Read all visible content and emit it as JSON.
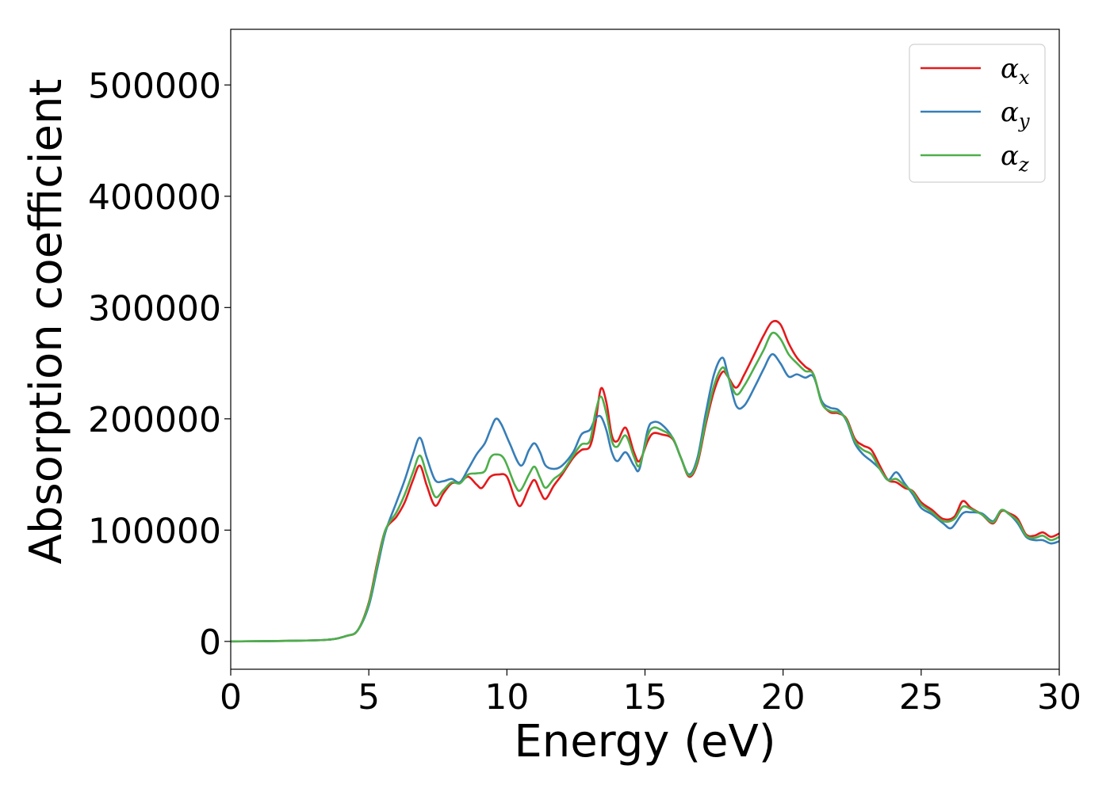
{
  "chart_data": {
    "type": "line",
    "title": "",
    "xlabel": "Energy (eV)",
    "ylabel": "Absorption coefficient",
    "xlim": [
      0,
      30
    ],
    "ylim": [
      -25000,
      550000
    ],
    "xticks": [
      0,
      5,
      10,
      15,
      20,
      25,
      30
    ],
    "yticks": [
      0,
      100000,
      200000,
      300000,
      400000,
      500000
    ],
    "grid": false,
    "legend_position": "top-right",
    "series": [
      {
        "name": "α_x",
        "symbol": "α",
        "subscript": "x",
        "color": "#e41a1c",
        "points": [
          [
            0,
            0
          ],
          [
            2,
            500
          ],
          [
            3.5,
            1500
          ],
          [
            4.2,
            5000
          ],
          [
            4.6,
            10000
          ],
          [
            5.0,
            35000
          ],
          [
            5.3,
            70000
          ],
          [
            5.6,
            100000
          ],
          [
            6.0,
            112000
          ],
          [
            6.3,
            125000
          ],
          [
            6.6,
            145000
          ],
          [
            6.85,
            158000
          ],
          [
            7.1,
            140000
          ],
          [
            7.4,
            122000
          ],
          [
            7.7,
            133000
          ],
          [
            8.0,
            142000
          ],
          [
            8.3,
            143000
          ],
          [
            8.6,
            148000
          ],
          [
            8.9,
            141000
          ],
          [
            9.1,
            138000
          ],
          [
            9.4,
            148000
          ],
          [
            9.7,
            150000
          ],
          [
            10.0,
            148000
          ],
          [
            10.3,
            128000
          ],
          [
            10.5,
            122000
          ],
          [
            10.8,
            138000
          ],
          [
            11.0,
            145000
          ],
          [
            11.2,
            135000
          ],
          [
            11.4,
            128000
          ],
          [
            11.7,
            140000
          ],
          [
            12.0,
            150000
          ],
          [
            12.4,
            165000
          ],
          [
            12.7,
            172000
          ],
          [
            13.0,
            175000
          ],
          [
            13.2,
            195000
          ],
          [
            13.4,
            227000
          ],
          [
            13.6,
            215000
          ],
          [
            13.8,
            185000
          ],
          [
            14.0,
            180000
          ],
          [
            14.3,
            192000
          ],
          [
            14.6,
            170000
          ],
          [
            14.8,
            162000
          ],
          [
            15.1,
            180000
          ],
          [
            15.3,
            187000
          ],
          [
            15.6,
            186000
          ],
          [
            16.0,
            182000
          ],
          [
            16.3,
            165000
          ],
          [
            16.6,
            148000
          ],
          [
            16.9,
            160000
          ],
          [
            17.2,
            195000
          ],
          [
            17.5,
            225000
          ],
          [
            17.8,
            242000
          ],
          [
            18.0,
            238000
          ],
          [
            18.3,
            228000
          ],
          [
            18.6,
            240000
          ],
          [
            19.0,
            260000
          ],
          [
            19.3,
            275000
          ],
          [
            19.6,
            287000
          ],
          [
            19.9,
            285000
          ],
          [
            20.2,
            268000
          ],
          [
            20.5,
            255000
          ],
          [
            20.8,
            247000
          ],
          [
            21.1,
            240000
          ],
          [
            21.4,
            215000
          ],
          [
            21.7,
            206000
          ],
          [
            22.0,
            205000
          ],
          [
            22.3,
            200000
          ],
          [
            22.6,
            182000
          ],
          [
            22.9,
            176000
          ],
          [
            23.2,
            172000
          ],
          [
            23.5,
            158000
          ],
          [
            23.8,
            145000
          ],
          [
            24.1,
            143000
          ],
          [
            24.4,
            138000
          ],
          [
            24.7,
            135000
          ],
          [
            25.0,
            125000
          ],
          [
            25.4,
            118000
          ],
          [
            25.8,
            110000
          ],
          [
            26.2,
            112000
          ],
          [
            26.5,
            126000
          ],
          [
            26.8,
            120000
          ],
          [
            27.2,
            114000
          ],
          [
            27.6,
            106000
          ],
          [
            27.9,
            117000
          ],
          [
            28.2,
            115000
          ],
          [
            28.5,
            110000
          ],
          [
            28.8,
            96000
          ],
          [
            29.1,
            95000
          ],
          [
            29.4,
            98000
          ],
          [
            29.7,
            94000
          ],
          [
            30.0,
            97000
          ]
        ]
      },
      {
        "name": "α_y",
        "symbol": "α",
        "subscript": "y",
        "color": "#377eb8",
        "points": [
          [
            0,
            0
          ],
          [
            2,
            500
          ],
          [
            3.5,
            1500
          ],
          [
            4.2,
            5000
          ],
          [
            4.6,
            10000
          ],
          [
            5.0,
            32000
          ],
          [
            5.3,
            65000
          ],
          [
            5.6,
            98000
          ],
          [
            6.0,
            125000
          ],
          [
            6.3,
            145000
          ],
          [
            6.6,
            168000
          ],
          [
            6.85,
            183000
          ],
          [
            7.1,
            165000
          ],
          [
            7.4,
            145000
          ],
          [
            7.7,
            144000
          ],
          [
            8.0,
            146000
          ],
          [
            8.3,
            143000
          ],
          [
            8.6,
            155000
          ],
          [
            8.9,
            168000
          ],
          [
            9.2,
            178000
          ],
          [
            9.4,
            190000
          ],
          [
            9.6,
            200000
          ],
          [
            9.8,
            195000
          ],
          [
            10.1,
            178000
          ],
          [
            10.5,
            158000
          ],
          [
            10.8,
            172000
          ],
          [
            11.0,
            178000
          ],
          [
            11.2,
            170000
          ],
          [
            11.4,
            158000
          ],
          [
            11.7,
            155000
          ],
          [
            12.0,
            158000
          ],
          [
            12.4,
            170000
          ],
          [
            12.7,
            186000
          ],
          [
            13.0,
            190000
          ],
          [
            13.2,
            200000
          ],
          [
            13.4,
            202000
          ],
          [
            13.6,
            190000
          ],
          [
            13.8,
            170000
          ],
          [
            14.0,
            162000
          ],
          [
            14.3,
            170000
          ],
          [
            14.6,
            158000
          ],
          [
            14.8,
            155000
          ],
          [
            15.1,
            190000
          ],
          [
            15.3,
            197000
          ],
          [
            15.6,
            195000
          ],
          [
            16.0,
            183000
          ],
          [
            16.3,
            165000
          ],
          [
            16.6,
            150000
          ],
          [
            16.9,
            165000
          ],
          [
            17.2,
            205000
          ],
          [
            17.5,
            240000
          ],
          [
            17.8,
            255000
          ],
          [
            18.0,
            240000
          ],
          [
            18.3,
            212000
          ],
          [
            18.6,
            212000
          ],
          [
            19.0,
            230000
          ],
          [
            19.3,
            245000
          ],
          [
            19.6,
            258000
          ],
          [
            19.9,
            250000
          ],
          [
            20.2,
            238000
          ],
          [
            20.5,
            240000
          ],
          [
            20.8,
            237000
          ],
          [
            21.1,
            238000
          ],
          [
            21.4,
            216000
          ],
          [
            21.7,
            210000
          ],
          [
            22.0,
            208000
          ],
          [
            22.3,
            198000
          ],
          [
            22.6,
            178000
          ],
          [
            22.9,
            168000
          ],
          [
            23.2,
            162000
          ],
          [
            23.5,
            155000
          ],
          [
            23.8,
            145000
          ],
          [
            24.1,
            152000
          ],
          [
            24.4,
            142000
          ],
          [
            24.7,
            132000
          ],
          [
            25.0,
            120000
          ],
          [
            25.4,
            114000
          ],
          [
            25.8,
            106000
          ],
          [
            26.1,
            102000
          ],
          [
            26.5,
            115000
          ],
          [
            26.8,
            116000
          ],
          [
            27.2,
            115000
          ],
          [
            27.6,
            108000
          ],
          [
            27.9,
            118000
          ],
          [
            28.2,
            114000
          ],
          [
            28.5,
            106000
          ],
          [
            28.8,
            94000
          ],
          [
            29.1,
            91000
          ],
          [
            29.4,
            91000
          ],
          [
            29.7,
            88000
          ],
          [
            30.0,
            90000
          ]
        ]
      },
      {
        "name": "α_z",
        "symbol": "α",
        "subscript": "z",
        "color": "#4daf4a",
        "points": [
          [
            0,
            0
          ],
          [
            2,
            500
          ],
          [
            3.5,
            1500
          ],
          [
            4.2,
            5000
          ],
          [
            4.6,
            10000
          ],
          [
            5.0,
            34000
          ],
          [
            5.3,
            68000
          ],
          [
            5.6,
            100000
          ],
          [
            6.0,
            116000
          ],
          [
            6.3,
            132000
          ],
          [
            6.6,
            152000
          ],
          [
            6.85,
            167000
          ],
          [
            7.1,
            150000
          ],
          [
            7.4,
            130000
          ],
          [
            7.7,
            136000
          ],
          [
            8.0,
            143000
          ],
          [
            8.3,
            142000
          ],
          [
            8.6,
            150000
          ],
          [
            8.9,
            151000
          ],
          [
            9.2,
            153000
          ],
          [
            9.4,
            165000
          ],
          [
            9.6,
            168000
          ],
          [
            9.9,
            164000
          ],
          [
            10.3,
            140000
          ],
          [
            10.5,
            136000
          ],
          [
            10.8,
            150000
          ],
          [
            11.0,
            157000
          ],
          [
            11.2,
            147000
          ],
          [
            11.4,
            138000
          ],
          [
            11.7,
            146000
          ],
          [
            12.0,
            152000
          ],
          [
            12.4,
            167000
          ],
          [
            12.7,
            177000
          ],
          [
            13.0,
            180000
          ],
          [
            13.2,
            205000
          ],
          [
            13.4,
            220000
          ],
          [
            13.6,
            205000
          ],
          [
            13.8,
            180000
          ],
          [
            14.0,
            175000
          ],
          [
            14.3,
            185000
          ],
          [
            14.6,
            166000
          ],
          [
            14.8,
            158000
          ],
          [
            15.1,
            185000
          ],
          [
            15.3,
            192000
          ],
          [
            15.6,
            190000
          ],
          [
            16.0,
            183000
          ],
          [
            16.3,
            165000
          ],
          [
            16.6,
            149000
          ],
          [
            16.9,
            162000
          ],
          [
            17.2,
            198000
          ],
          [
            17.5,
            230000
          ],
          [
            17.8,
            246000
          ],
          [
            18.0,
            238000
          ],
          [
            18.3,
            222000
          ],
          [
            18.6,
            230000
          ],
          [
            19.0,
            248000
          ],
          [
            19.3,
            262000
          ],
          [
            19.6,
            277000
          ],
          [
            19.9,
            272000
          ],
          [
            20.2,
            258000
          ],
          [
            20.5,
            250000
          ],
          [
            20.8,
            243000
          ],
          [
            21.1,
            240000
          ],
          [
            21.4,
            214000
          ],
          [
            21.7,
            207000
          ],
          [
            22.0,
            206000
          ],
          [
            22.3,
            199000
          ],
          [
            22.6,
            180000
          ],
          [
            22.9,
            172000
          ],
          [
            23.2,
            168000
          ],
          [
            23.5,
            155000
          ],
          [
            23.8,
            145000
          ],
          [
            24.1,
            146000
          ],
          [
            24.4,
            140000
          ],
          [
            24.7,
            134000
          ],
          [
            25.0,
            123000
          ],
          [
            25.4,
            116000
          ],
          [
            25.8,
            108000
          ],
          [
            26.2,
            110000
          ],
          [
            26.5,
            121000
          ],
          [
            26.8,
            119000
          ],
          [
            27.2,
            114000
          ],
          [
            27.6,
            107000
          ],
          [
            27.9,
            118000
          ],
          [
            28.2,
            114000
          ],
          [
            28.5,
            108000
          ],
          [
            28.8,
            95000
          ],
          [
            29.1,
            93000
          ],
          [
            29.4,
            95000
          ],
          [
            29.7,
            91000
          ],
          [
            30.0,
            94000
          ]
        ]
      }
    ]
  }
}
